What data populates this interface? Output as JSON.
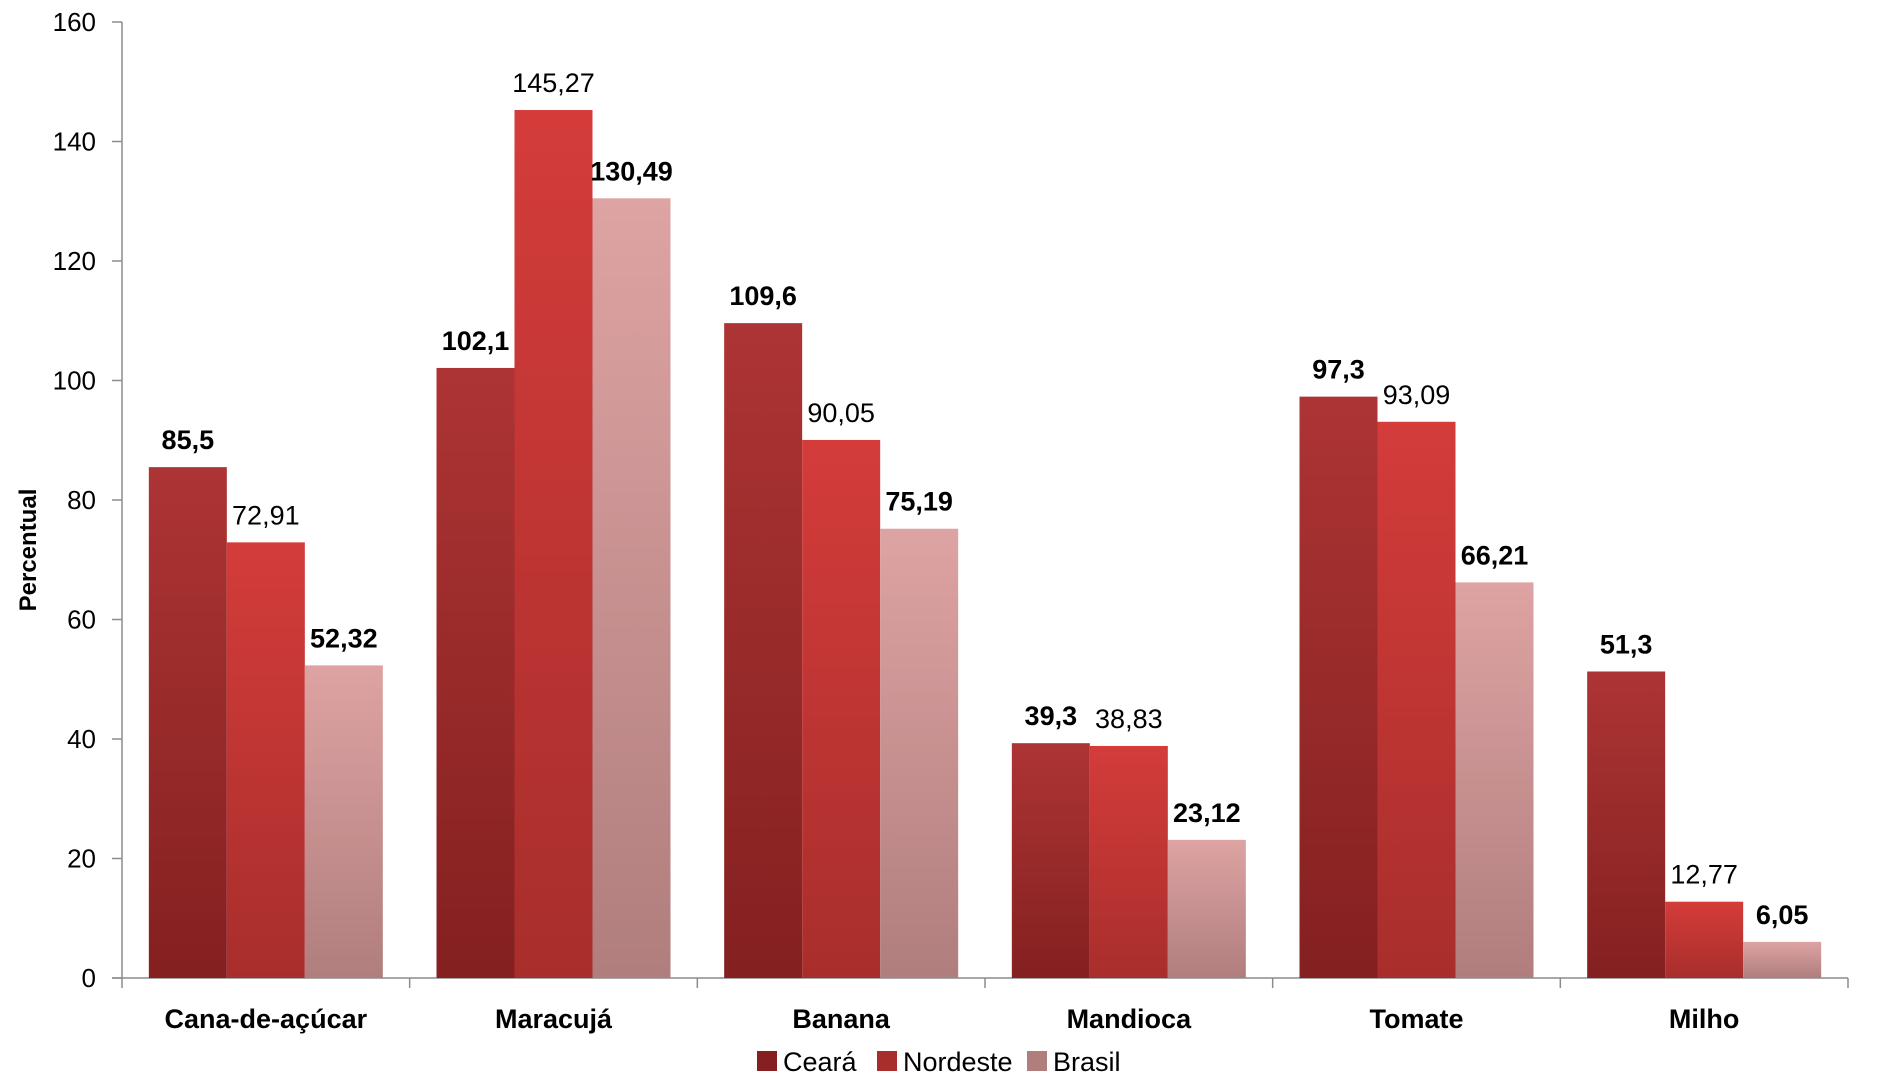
{
  "chart_data": {
    "type": "bar",
    "title": "",
    "xlabel": "",
    "ylabel": "Percentual",
    "ylim": [
      0,
      160
    ],
    "yticks": [
      "0",
      "20",
      "40",
      "60",
      "80",
      "100",
      "120",
      "140",
      "160"
    ],
    "categories": [
      "Cana-de-açúcar",
      "Maracujá",
      "Banana",
      "Mandioca",
      "Tomate",
      "Milho"
    ],
    "series": [
      {
        "name": "Ceará",
        "values": [
          85.5,
          102.1,
          109.6,
          39.3,
          97.3,
          51.3
        ],
        "labels": [
          "85,5",
          "102,1",
          "109,6",
          "39,3",
          "97,3",
          "51,3"
        ],
        "label_bold": true,
        "color_top": "#ad3434",
        "color_bottom": "#842020"
      },
      {
        "name": "Nordeste",
        "values": [
          72.91,
          145.27,
          90.05,
          38.83,
          93.09,
          12.77
        ],
        "labels": [
          "72,91",
          "145,27",
          "90,05",
          "38,83",
          "93,09",
          "12,77"
        ],
        "label_bold": false,
        "color_top": "#d43c3a",
        "color_bottom": "#a82e2c"
      },
      {
        "name": "Brasil",
        "values": [
          52.32,
          130.49,
          75.19,
          23.12,
          66.21,
          6.05
        ],
        "labels": [
          "52,32",
          "130,49",
          "75,19",
          "23,12",
          "66,21",
          "6,05"
        ],
        "label_bold": true,
        "color_top": "#dea3a3",
        "color_bottom": "#b07e7d"
      }
    ],
    "grid": false,
    "legend_position": "bottom"
  }
}
